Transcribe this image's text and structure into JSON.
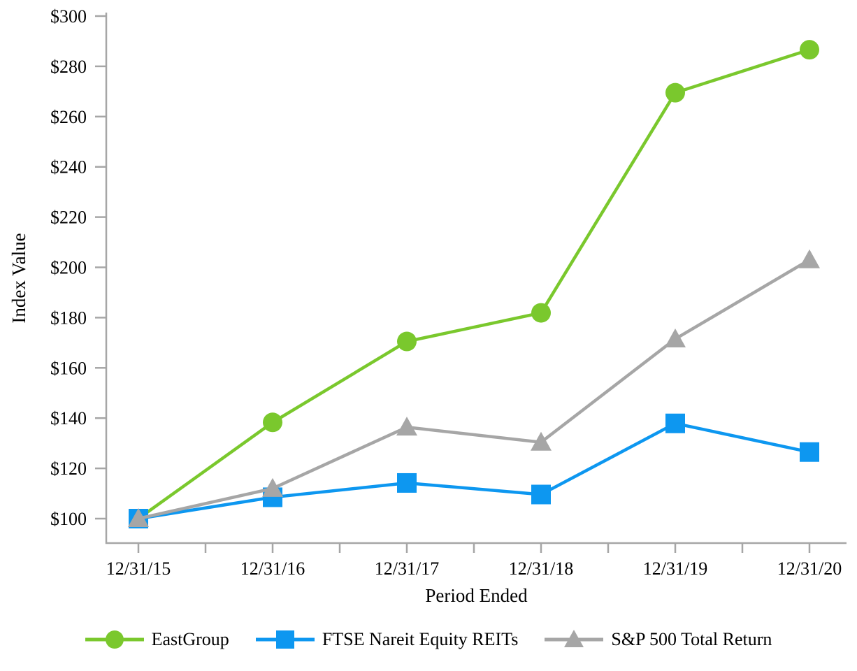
{
  "page": {
    "background": "#ffffff"
  },
  "chart_data": {
    "type": "line",
    "title": "",
    "xlabel": "Period Ended",
    "ylabel": "Index Value",
    "categories": [
      "12/31/15",
      "12/31/16",
      "12/31/17",
      "12/31/18",
      "12/31/19",
      "12/31/20"
    ],
    "y_ticks": [
      {
        "value": 100,
        "label": "$100"
      },
      {
        "value": 120,
        "label": "$120"
      },
      {
        "value": 140,
        "label": "$140"
      },
      {
        "value": 160,
        "label": "$160"
      },
      {
        "value": 180,
        "label": "$180"
      },
      {
        "value": 200,
        "label": "$200"
      },
      {
        "value": 220,
        "label": "$220"
      },
      {
        "value": 240,
        "label": "$240"
      },
      {
        "value": 260,
        "label": "$260"
      },
      {
        "value": 280,
        "label": "$280"
      },
      {
        "value": 300,
        "label": "$300"
      }
    ],
    "ylim": [
      90,
      301.5
    ],
    "grid": false,
    "legend_position": "bottom",
    "axis_color": "#a6a6a6",
    "text_color": "#000000",
    "series": [
      {
        "name": "EastGroup",
        "marker": "circle",
        "color": "#7ac82d",
        "values": [
          100.0,
          138.3,
          170.5,
          181.9,
          269.5,
          286.6
        ]
      },
      {
        "name": "FTSE Nareit Equity REITs",
        "marker": "square",
        "color": "#0d97f0",
        "values": [
          100.0,
          108.5,
          114.2,
          109.6,
          137.9,
          126.5
        ]
      },
      {
        "name": "S&P 500 Total Return",
        "marker": "triangle",
        "color": "#a6a6a6",
        "values": [
          100.0,
          112.0,
          136.4,
          130.4,
          171.5,
          203.0
        ]
      }
    ]
  }
}
